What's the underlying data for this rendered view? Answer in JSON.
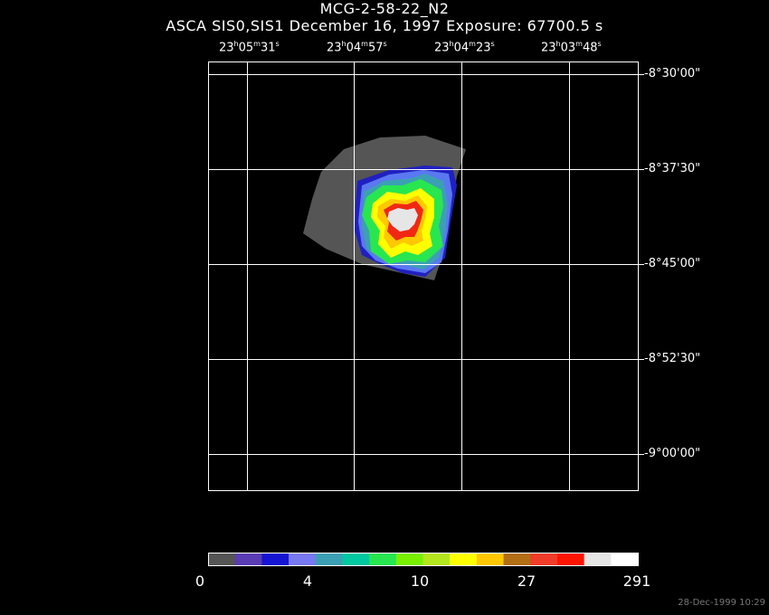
{
  "header": {
    "title": "MCG-2-58-22_N2",
    "subtitle": "ASCA SIS0,SIS1 December 16, 1997 Exposure: 67700.5 s"
  },
  "ra_labels": [
    {
      "h": "23",
      "m": "05",
      "s": "31"
    },
    {
      "h": "23",
      "m": "04",
      "s": "57"
    },
    {
      "h": "23",
      "m": "04",
      "s": "23"
    },
    {
      "h": "23",
      "m": "03",
      "s": "48"
    }
  ],
  "dec_labels": [
    "-8°30'00\"",
    "-8°37'30\"",
    "-8°45'00\"",
    "-8°52'30\"",
    "-9°00'00\""
  ],
  "colorbar": {
    "colors": [
      "#555555",
      "#5a3cb4",
      "#1414d2",
      "#7878f0",
      "#3ca0b4",
      "#00c8a0",
      "#28e650",
      "#78f000",
      "#b4e61e",
      "#ffff00",
      "#ffc800",
      "#b46e14",
      "#f03c28",
      "#ff1400",
      "#e6e6e6",
      "#ffffff"
    ],
    "labels": [
      "0",
      "4",
      "10",
      "27",
      "291"
    ]
  },
  "footer": {
    "timestamp": "28-Dec-1999 10:29"
  }
}
